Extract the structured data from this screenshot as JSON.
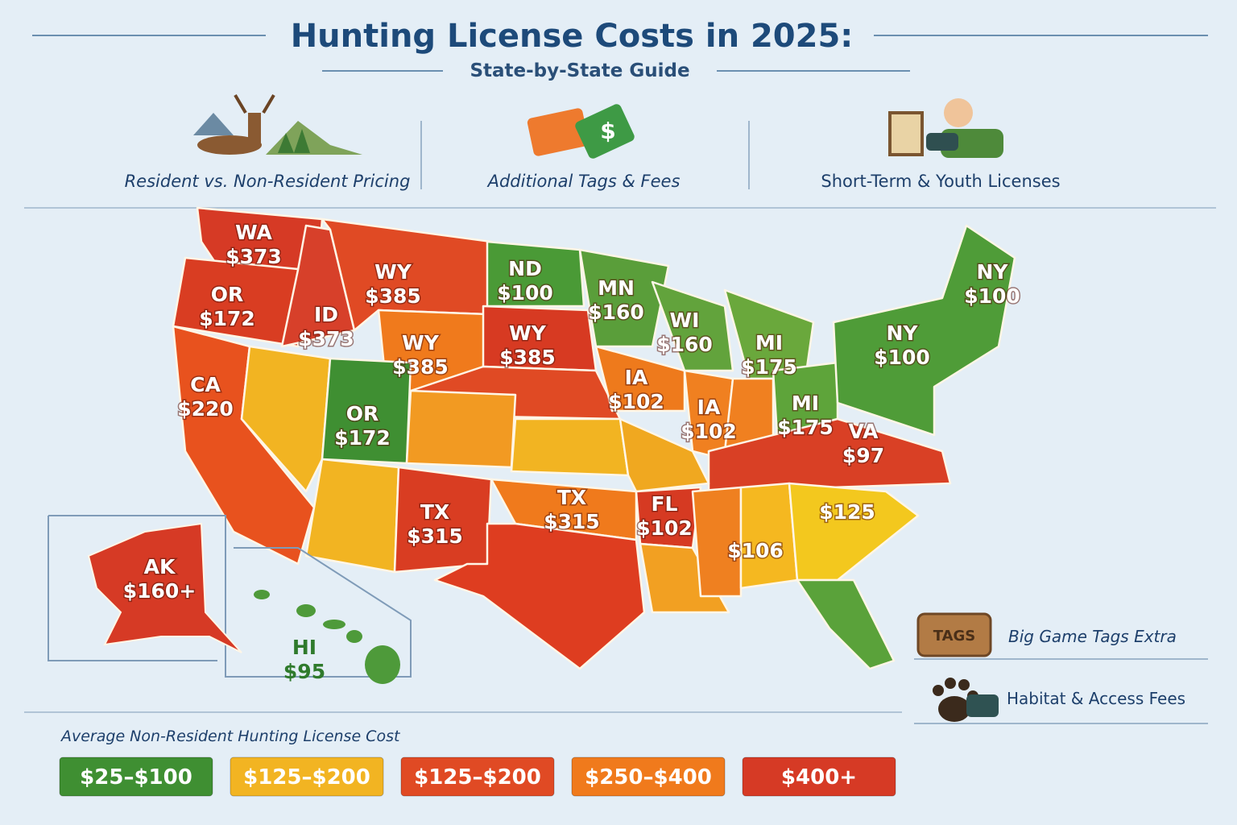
{
  "header": {
    "title": "Hunting License Costs in 2025:",
    "subtitle": "State-by-State Guide"
  },
  "features": [
    {
      "label": "Resident vs. Non-Resident Pricing"
    },
    {
      "label": "Additional Tags & Fees",
      "icon_text": "$"
    },
    {
      "label": "Short-Term & Youth Licenses"
    }
  ],
  "map": {
    "labels": [
      {
        "state": "WA",
        "price": "$373"
      },
      {
        "state": "OR",
        "price": "$172"
      },
      {
        "state": "WY",
        "price": "$385"
      },
      {
        "state": "ID",
        "price": "$373"
      },
      {
        "state": "ND",
        "price": "$100"
      },
      {
        "state": "MN",
        "price": "$160"
      },
      {
        "state": "WY",
        "price": "$385"
      },
      {
        "state": "WY",
        "price": "$385"
      },
      {
        "state": "WI",
        "price": "$160"
      },
      {
        "state": "MI",
        "price": "$175"
      },
      {
        "state": "NY",
        "price": "$100"
      },
      {
        "state": "NY",
        "price": "$100"
      },
      {
        "state": "CA",
        "price": "$220"
      },
      {
        "state": "IA",
        "price": "$102"
      },
      {
        "state": "IA",
        "price": "$102"
      },
      {
        "state": "OR",
        "price": "$172"
      },
      {
        "state": "MI",
        "price": "$175"
      },
      {
        "state": "VA",
        "price": "$97"
      },
      {
        "state": "TX",
        "price": "$315"
      },
      {
        "state": "TX",
        "price": "$315"
      },
      {
        "state": "FL",
        "price": "$102"
      },
      {
        "price": "$125"
      },
      {
        "price": "$106"
      },
      {
        "state": "AK",
        "price": "$160+"
      },
      {
        "state": "HI",
        "price": "$95"
      }
    ]
  },
  "notes": [
    {
      "label": "Big Game Tags Extra",
      "icon_text": "TAGS"
    },
    {
      "label": "Habitat & Access Fees"
    }
  ],
  "legend": {
    "title": "Average Non-Resident Hunting License Cost",
    "items": [
      "$25–$100",
      "$125–$200",
      "$125–$200",
      "$250–$400",
      "$400+"
    ]
  }
}
